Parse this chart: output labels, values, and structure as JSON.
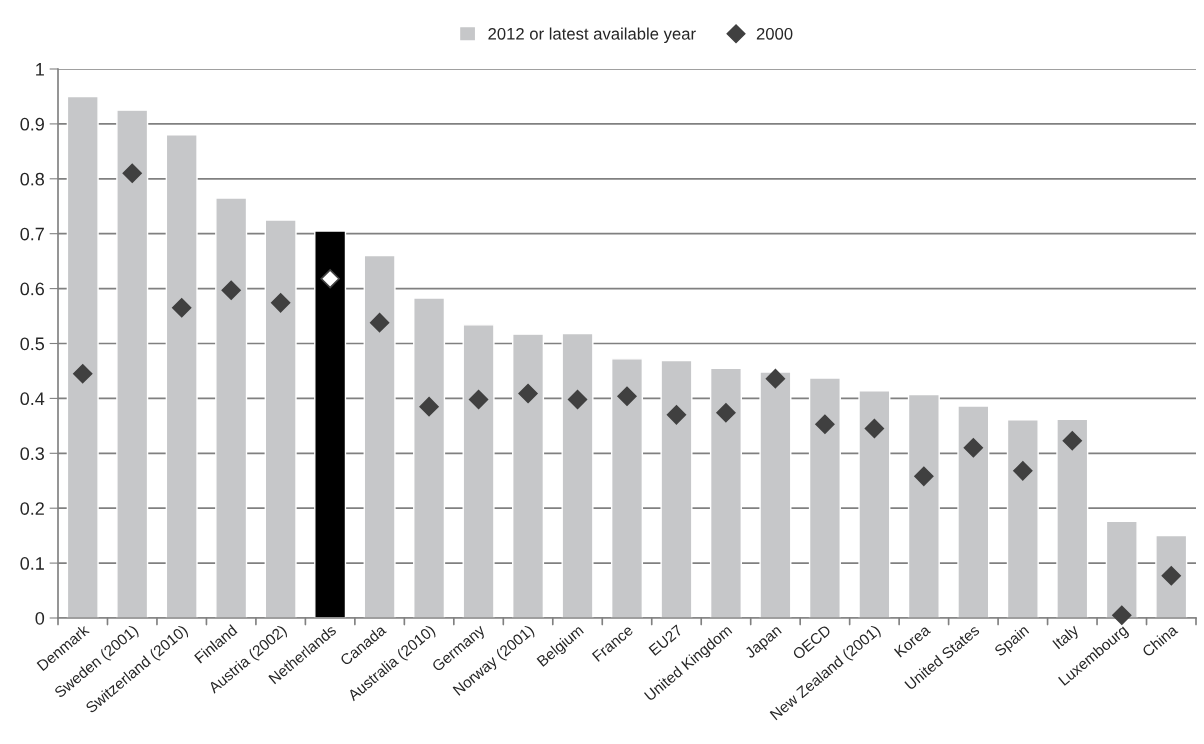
{
  "chart_data": {
    "type": "bar",
    "categories": [
      "Denmark",
      "Sweden (2001)",
      "Switzerland (2010)",
      "Finland",
      "Austria (2002)",
      "Netherlands",
      "Canada",
      "Australia (2010)",
      "Germany",
      "Norway (2001)",
      "Belgium",
      "France",
      "EU27",
      "United Kingdom",
      "Japan",
      "OECD",
      "New Zealand (2001)",
      "Korea",
      "United States",
      "Spain",
      "Italy",
      "Luxembourg",
      "China"
    ],
    "series": [
      {
        "name": "2012 or latest available year",
        "color": "#c6c7c9",
        "colors": [
          "#c6c7c9",
          "#c6c7c9",
          "#c6c7c9",
          "#c6c7c9",
          "#c6c7c9",
          "#000000",
          "#c6c7c9",
          "#c6c7c9",
          "#c6c7c9",
          "#c6c7c9",
          "#c6c7c9",
          "#c6c7c9",
          "#c6c7c9",
          "#c6c7c9",
          "#c6c7c9",
          "#c6c7c9",
          "#c6c7c9",
          "#c6c7c9",
          "#c6c7c9",
          "#c6c7c9",
          "#c6c7c9",
          "#c6c7c9",
          "#c6c7c9"
        ],
        "values": [
          0.95,
          0.925,
          0.88,
          0.765,
          0.725,
          0.705,
          0.66,
          0.583,
          0.534,
          0.517,
          0.518,
          0.472,
          0.469,
          0.455,
          0.448,
          0.437,
          0.414,
          0.407,
          0.386,
          0.361,
          0.362,
          0.176,
          0.15
        ]
      },
      {
        "name": "2000",
        "type": "scatter",
        "marker": "diamond",
        "color": "#404040",
        "colors": [
          "#404040",
          "#404040",
          "#404040",
          "#404040",
          "#404040",
          "#ffffff",
          "#404040",
          "#404040",
          "#404040",
          "#404040",
          "#404040",
          "#404040",
          "#404040",
          "#404040",
          "#404040",
          "#404040",
          "#404040",
          "#404040",
          "#404040",
          "#404040",
          "#404040",
          "#404040",
          "#404040"
        ],
        "values": [
          0.445,
          0.81,
          0.565,
          0.597,
          0.574,
          0.618,
          0.538,
          0.385,
          0.398,
          0.409,
          0.398,
          0.404,
          0.37,
          0.374,
          0.436,
          0.353,
          0.345,
          0.258,
          0.31,
          0.268,
          0.323,
          0.005,
          0.077
        ]
      }
    ],
    "ylim": [
      0,
      1
    ],
    "yticks": [
      0,
      0.1,
      0.2,
      0.3,
      0.4,
      0.5,
      0.6,
      0.7,
      0.8,
      0.9,
      1
    ],
    "grid": "y",
    "legend": "top"
  }
}
